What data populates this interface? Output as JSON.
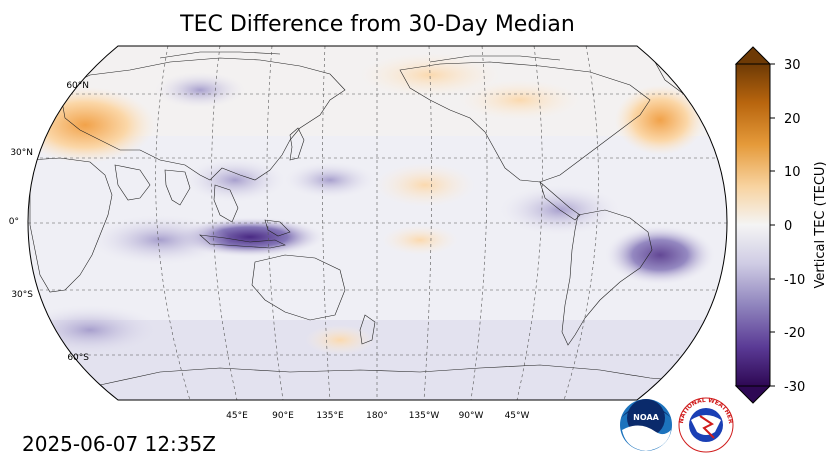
{
  "title": "TEC Difference from 30-Day Median",
  "timestamp": "2025-06-07 12:35Z",
  "latitude_labels": [
    "60°N",
    "30°N",
    "0°",
    "30°S",
    "60°S"
  ],
  "longitude_labels": [
    "45°E",
    "90°E",
    "135°E",
    "180°",
    "135°W",
    "90°W",
    "45°W"
  ],
  "colorbar": {
    "label": "Vertical TEC (TECU)",
    "ticks": [
      "30",
      "20",
      "10",
      "0",
      "-10",
      "-20",
      "-30"
    ],
    "min": -30,
    "max": 30,
    "colors": {
      "positive": "#8a4a08",
      "zero": "#f4f4f4",
      "negative": "#2e0854"
    }
  },
  "logos": {
    "noaa": "NOAA",
    "nws": "NATIONAL WEATHER SERVICE"
  },
  "map": {
    "projection": "Robinson",
    "central_longitude": "180°",
    "graticule": "dashed"
  }
}
